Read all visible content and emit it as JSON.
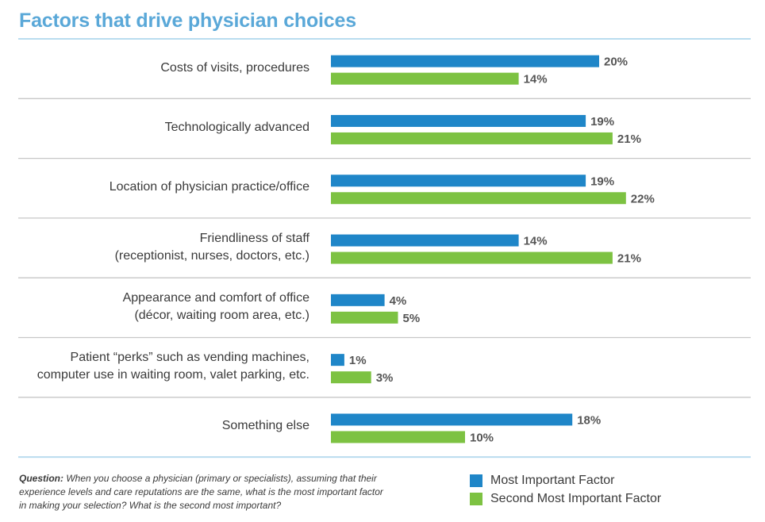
{
  "chart_data": {
    "type": "bar",
    "orientation": "horizontal",
    "title": "Factors that drive physician choices",
    "value_suffix": "%",
    "xlim": [
      0,
      25
    ],
    "categories": [
      [
        "Costs of visits, procedures"
      ],
      [
        "Technologically advanced"
      ],
      [
        "Location of physician practice/office"
      ],
      [
        "Friendliness of staff",
        "(receptionist, nurses, doctors, etc.)"
      ],
      [
        "Appearance and comfort of office",
        "(décor, waiting room area, etc.)"
      ],
      [
        "Patient “perks” such as vending machines,",
        "computer use in waiting room, valet parking, etc."
      ],
      [
        "Something else"
      ]
    ],
    "series": [
      {
        "name": "Most Important Factor",
        "color": "#1f86c8",
        "values": [
          20,
          19,
          19,
          14,
          4,
          1,
          18
        ]
      },
      {
        "name": "Second Most Important Factor",
        "color": "#7dc242",
        "values": [
          14,
          21,
          22,
          21,
          5,
          3,
          10
        ]
      }
    ]
  },
  "question": {
    "label": "Question:",
    "text": "When you choose a physician (primary or specialists), assuming that their experience levels and care reputations are the same, what is the most important factor in making your selection? What is the second most important?"
  },
  "colors": {
    "title": "#5aa8d8",
    "divider": "#c7c7c7",
    "frame": "#b9dcef"
  }
}
